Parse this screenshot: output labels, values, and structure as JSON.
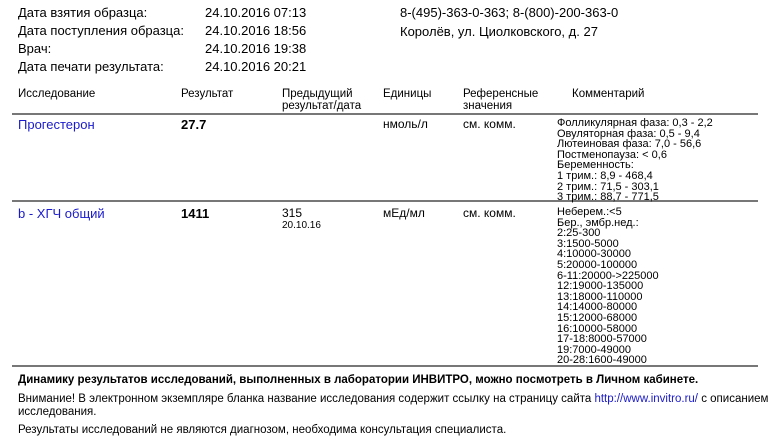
{
  "info": [
    {
      "label": "Дата взятия образца:",
      "value": "24.10.2016 07:13"
    },
    {
      "label": "Дата поступления образца:",
      "value": "24.10.2016 18:56"
    },
    {
      "label": "Врач:",
      "value": "24.10.2016 19:38"
    },
    {
      "label": "Дата печати результата:",
      "value": "24.10.2016 20:21"
    }
  ],
  "lab": {
    "phones": "8-(495)-363-0-363; 8-(800)-200-363-0",
    "address": "Королёв, ул. Циолковского, д. 27"
  },
  "table": {
    "headers": {
      "test": "Исследование",
      "result": "Результат",
      "prev1": "Предыдущий",
      "prev2": "результат/дата",
      "units": "Единицы",
      "ref1": "Референсные",
      "ref2": "значения",
      "comment": "Комментарий"
    },
    "rows": [
      {
        "test": "Прогестерон",
        "result": "27.7",
        "prev": "",
        "prev_date": "",
        "units": "нмоль/л",
        "ref": "см. комм.",
        "comment": [
          "Фолликулярная фаза: 0,3 - 2,2",
          "Овуляторная фаза: 0,5 - 9,4",
          "Лютеиновая фаза: 7,0 - 56,6",
          "Постменопауза: < 0,6",
          "Беременность:",
          "1 трим.: 8,9 - 468,4",
          "2 трим.: 71,5 - 303,1",
          "3 трим.: 88,7 - 771,5"
        ]
      },
      {
        "test": "b - ХГЧ общий",
        "result": "1411",
        "prev": "315",
        "prev_date": "20.10.16",
        "units": "мЕд/мл",
        "ref": "см. комм.",
        "comment": [
          "Неберем.:<5",
          "Бер., эмбр.нед.:",
          "2:25-300",
          "3:1500-5000",
          "4:10000-30000",
          "5:20000-100000",
          "6-11:20000->225000",
          "12:19000-135000",
          "13:18000-110000",
          "14:14000-80000",
          "15:12000-68000",
          "16:10000-58000",
          "17-18:8000-57000",
          "19:7000-49000",
          "20-28:1600-49000"
        ]
      }
    ]
  },
  "footer": {
    "bold": "Динамику результатов исследований, выполненных в лаборатории ИНВИТРО, можно посмотреть в Личном кабинете.",
    "notice_pre": "Внимание! В электронном экземпляре бланка название исследования содержит ссылку на страницу сайта ",
    "notice_link": "http://www.invitro.ru/",
    "notice_post": " с описанием",
    "notice_line2": "исследования.",
    "disclaimer": "Результаты исследований не являются диагнозом, необходима консультация специалиста."
  }
}
